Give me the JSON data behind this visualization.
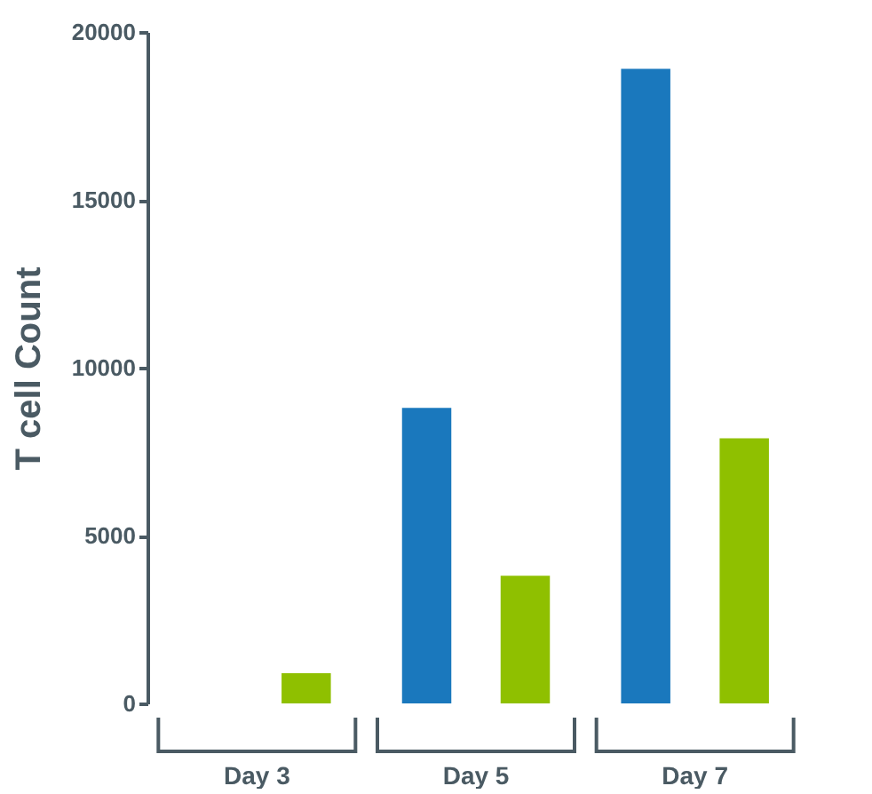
{
  "chart_data": {
    "type": "bar",
    "ylabel": "T cell Count",
    "categories": [
      "Day 3",
      "Day 5",
      "Day 7"
    ],
    "series": [
      {
        "color": "#1a78bd",
        "values": [
          0,
          8800,
          18900
        ]
      },
      {
        "color": "#8fc000",
        "values": [
          900,
          3800,
          7900
        ]
      }
    ],
    "ylim": [
      0,
      20000
    ],
    "yticks": [
      0,
      5000,
      10000,
      15000,
      20000
    ],
    "grid": false,
    "legend": false
  }
}
